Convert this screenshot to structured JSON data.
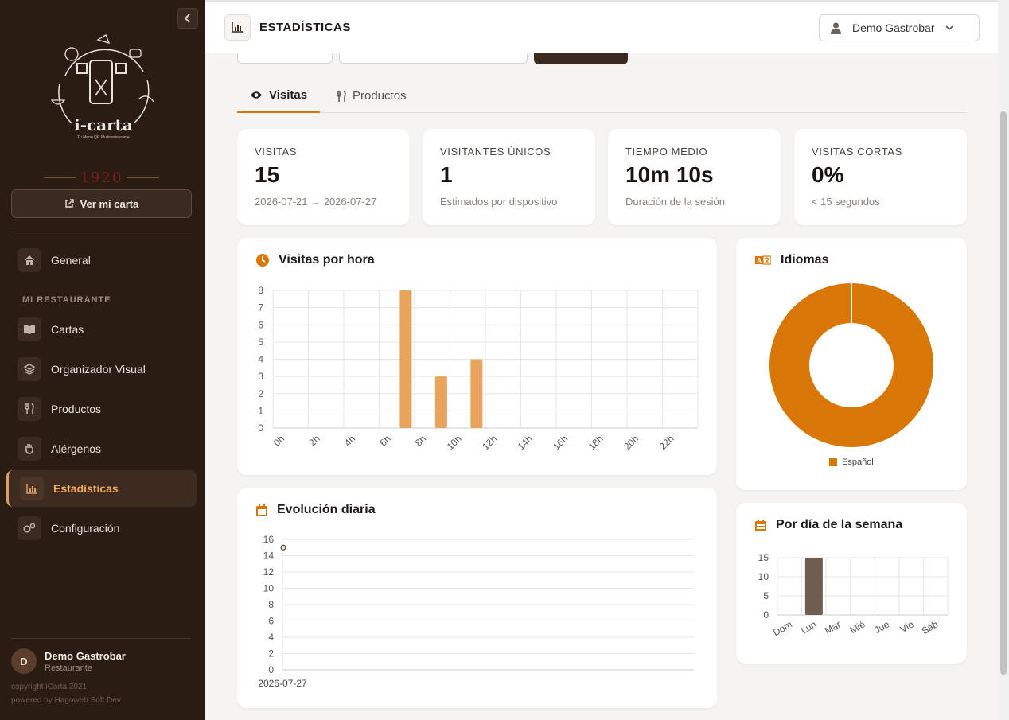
{
  "sidebar": {
    "logo_text": "i-carta",
    "logo_tagline": "Tu Menú QR Multirestaurante",
    "logo_year": "1920",
    "ver_carta": "Ver mi carta",
    "section_label": "MI RESTAURANTE",
    "items": [
      {
        "label": "General",
        "icon": "home-icon"
      },
      {
        "label": "Cartas",
        "icon": "book-icon"
      },
      {
        "label": "Organizador Visual",
        "icon": "layers-icon"
      },
      {
        "label": "Productos",
        "icon": "utensils-icon"
      },
      {
        "label": "Alérgenos",
        "icon": "hand-icon"
      },
      {
        "label": "Estadísticas",
        "icon": "chart-icon",
        "active": true
      },
      {
        "label": "Configuración",
        "icon": "gears-icon"
      }
    ],
    "user": {
      "initial": "D",
      "name": "Demo Gastrobar",
      "role": "Restaurante"
    },
    "copyright": "copyright iCarta 2021",
    "powered": "powered by Hagoweb Soft Dev"
  },
  "header": {
    "title": "ESTADÍSTICAS",
    "user_menu": "Demo Gastrobar"
  },
  "tabs": [
    {
      "label": "Visitas",
      "icon": "eye-icon",
      "active": true
    },
    {
      "label": "Productos",
      "icon": "utensils-icon",
      "active": false
    }
  ],
  "kpis": [
    {
      "label": "VISITAS",
      "value": "15",
      "sub": "2026-07-21 → 2026-07-27"
    },
    {
      "label": "VISITANTES ÚNICOS",
      "value": "1",
      "sub": "Estimados por dispositivo"
    },
    {
      "label": "TIEMPO MEDIO",
      "value": "10m 10s",
      "sub": "Duración de la sesión"
    },
    {
      "label": "VISITAS CORTAS",
      "value": "0%",
      "sub": "< 15 segundos"
    }
  ],
  "cards": {
    "hourly": "Visitas por hora",
    "languages": "Idiomas",
    "daily": "Evolución diaria",
    "weekday": "Por día de la semana"
  },
  "colors": {
    "accent": "#d97706",
    "sidebar": "#2b1c13",
    "bar_hour": "#e8a45c",
    "bar_week": "#6f5d52"
  },
  "chart_data": [
    {
      "type": "bar",
      "title": "Visitas por hora",
      "categories": [
        "0h",
        "1h",
        "2h",
        "3h",
        "4h",
        "5h",
        "6h",
        "7h",
        "8h",
        "9h",
        "10h",
        "11h",
        "12h",
        "13h",
        "14h",
        "15h",
        "16h",
        "17h",
        "18h",
        "19h",
        "20h",
        "21h",
        "22h",
        "23h"
      ],
      "tick_labels": [
        "0h",
        "2h",
        "4h",
        "6h",
        "8h",
        "10h",
        "12h",
        "14h",
        "16h",
        "18h",
        "20h",
        "22h"
      ],
      "values": [
        0,
        0,
        0,
        0,
        0,
        0,
        0,
        8,
        0,
        3,
        0,
        4,
        0,
        0,
        0,
        0,
        0,
        0,
        0,
        0,
        0,
        0,
        0,
        0
      ],
      "ylim": [
        0,
        8
      ],
      "yticks": [
        0,
        1,
        2,
        3,
        4,
        5,
        6,
        7,
        8
      ]
    },
    {
      "type": "pie",
      "title": "Idiomas",
      "labels": [
        "Español"
      ],
      "values": [
        15
      ],
      "legend": "bottom"
    },
    {
      "type": "line",
      "title": "Evolución diaria",
      "x": [
        "2026-07-27"
      ],
      "y": [
        15
      ],
      "ylim": [
        0,
        16
      ],
      "yticks": [
        0,
        2,
        4,
        6,
        8,
        10,
        12,
        14,
        16
      ]
    },
    {
      "type": "bar",
      "title": "Por día de la semana",
      "categories": [
        "Dom",
        "Lun",
        "Mar",
        "Mié",
        "Jue",
        "Vie",
        "Sáb"
      ],
      "values": [
        0,
        15,
        0,
        0,
        0,
        0,
        0
      ],
      "ylim": [
        0,
        15
      ],
      "yticks": [
        0,
        5,
        10,
        15
      ]
    }
  ]
}
